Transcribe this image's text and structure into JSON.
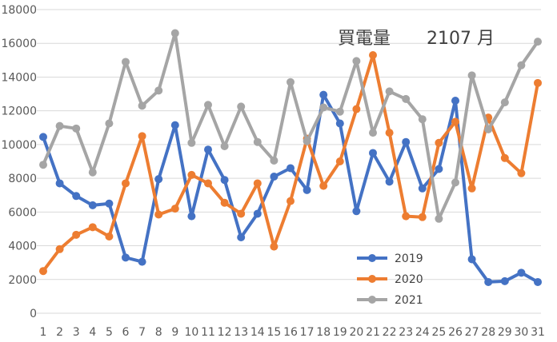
{
  "chart_data": {
    "type": "line",
    "title": "買電量 2107 月",
    "title_parts": [
      "買電量",
      "2107 月"
    ],
    "xlabel": "",
    "ylabel": "",
    "categories": [
      "1",
      "2",
      "3",
      "4",
      "5",
      "6",
      "7",
      "8",
      "9",
      "10",
      "11",
      "12",
      "13",
      "14",
      "15",
      "16",
      "17",
      "18",
      "19",
      "20",
      "21",
      "22",
      "23",
      "24",
      "25",
      "26",
      "27",
      "28",
      "29",
      "30",
      "31"
    ],
    "ylim": [
      0,
      18000
    ],
    "yticks": [
      0,
      2000,
      4000,
      6000,
      8000,
      10000,
      12000,
      14000,
      16000,
      18000
    ],
    "ytick_labels": [
      "0",
      "2000",
      "4000",
      "6000",
      "8000",
      "10000",
      "12000",
      "14000",
      "16000",
      "18000"
    ],
    "grid": "horizontal",
    "legend_position": "bottom-right",
    "series": [
      {
        "name": "2019",
        "color": "#4472C4",
        "values": [
          10450,
          7700,
          6950,
          6400,
          6500,
          3300,
          3050,
          7950,
          11150,
          5750,
          9700,
          7900,
          4500,
          5900,
          8100,
          8600,
          7300,
          12950,
          11250,
          6050,
          9500,
          7800,
          10150,
          7400,
          8550,
          12600,
          3200,
          1850,
          1900,
          2400,
          1850
        ]
      },
      {
        "name": "2020",
        "color": "#ED7D31",
        "values": [
          2500,
          3800,
          4650,
          5100,
          4550,
          7700,
          10500,
          5850,
          6200,
          8200,
          7700,
          6550,
          5900,
          7700,
          3950,
          6650,
          10350,
          7550,
          9000,
          12100,
          15300,
          10700,
          5750,
          5700,
          10100,
          11350,
          7400,
          11600,
          9200,
          8300,
          13650
        ]
      },
      {
        "name": "2021",
        "color": "#A5A5A5",
        "values": [
          8800,
          11100,
          10950,
          8350,
          11250,
          14900,
          12300,
          13200,
          16600,
          10100,
          12350,
          9900,
          12250,
          10150,
          9050,
          13700,
          10200,
          12200,
          11950,
          14950,
          10700,
          13150,
          12700,
          11500,
          5600,
          7750,
          14100,
          10900,
          12500,
          14700,
          16100
        ]
      }
    ]
  }
}
